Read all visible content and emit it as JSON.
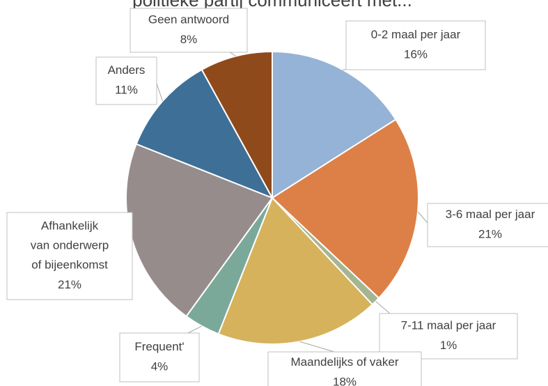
{
  "chart_data": {
    "type": "pie",
    "title": "politieke partij communiceert met...",
    "categories": [
      "0-2 maal per jaar",
      "3-6 maal per jaar",
      "7-11 maal per jaar",
      "Maandelijks of vaker",
      "Frequent'",
      "Afhankelijk van onderwerp of bijeenkomst",
      "Anders",
      "Geen antwoord"
    ],
    "values": [
      16,
      21,
      1,
      18,
      4,
      21,
      11,
      8
    ],
    "value_labels": [
      "16%",
      "21%",
      "1%",
      "18%",
      "4%",
      "21%",
      "11%",
      "8%"
    ],
    "colors": [
      "#95b3d7",
      "#dd8047",
      "#a5b592",
      "#d6b25c",
      "#7aa99a",
      "#968c8c",
      "#3e6f96",
      "#8f4a1b"
    ]
  }
}
